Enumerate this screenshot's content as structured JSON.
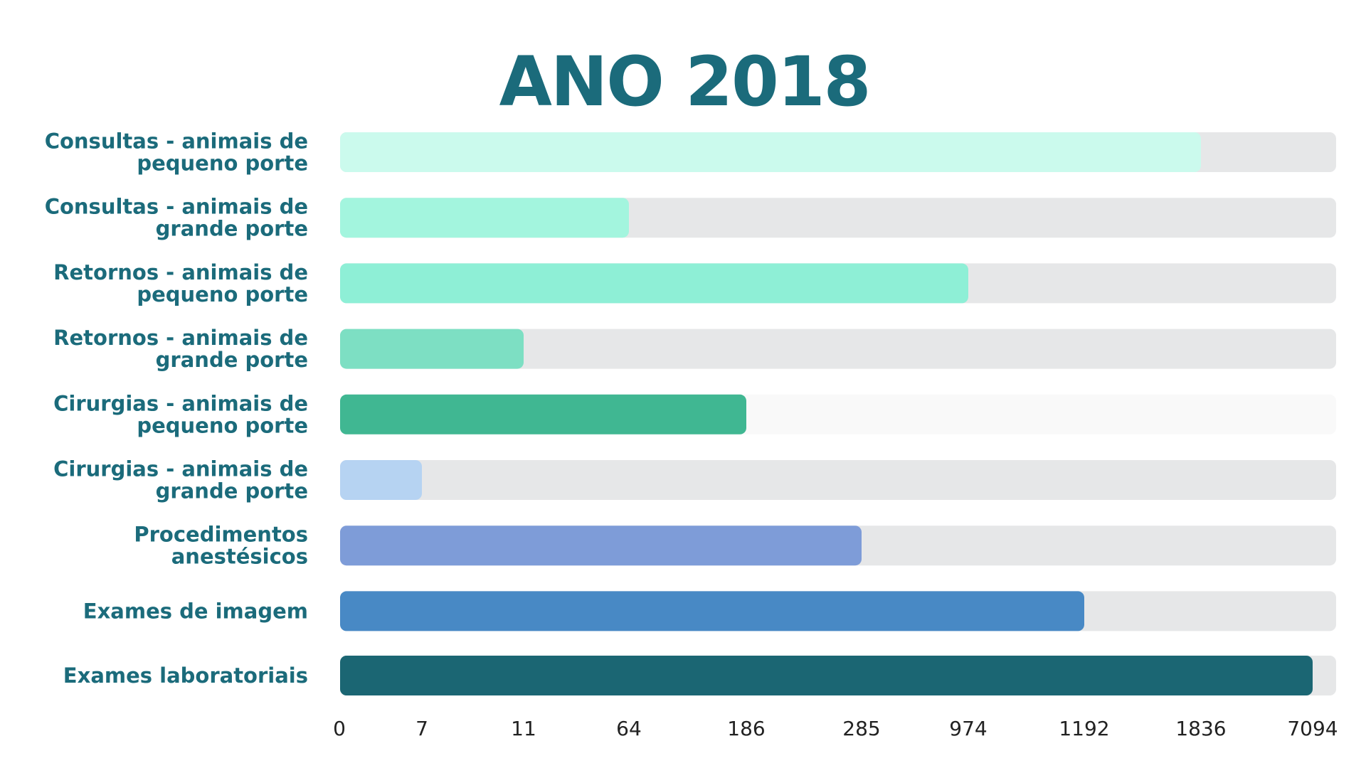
{
  "chart_data": {
    "type": "bar",
    "orientation": "horizontal",
    "title": "ANO 2018",
    "categories": [
      [
        "Consultas - animais de",
        "pequeno porte"
      ],
      [
        "Consultas - animais de",
        "grande porte"
      ],
      [
        "Retornos - animais de",
        "pequeno porte"
      ],
      [
        "Retornos - animais de",
        "grande porte"
      ],
      [
        "Cirurgias - animais de",
        "pequeno porte"
      ],
      [
        "Cirurgias - animais de",
        "grande porte"
      ],
      [
        "Procedimentos",
        "anestésicos"
      ],
      [
        "Exames de imagem"
      ],
      [
        "Exames laboratoriais"
      ]
    ],
    "values": [
      1836,
      64,
      974,
      11,
      186,
      7,
      285,
      1192,
      7094
    ],
    "bar_colors": [
      "#cbfaed",
      "#a3f5de",
      "#8eefd6",
      "#7ddfc3",
      "#40b792",
      "#b6d3f2",
      "#7e9cd8",
      "#4889c5",
      "#1b6673"
    ],
    "track_colors": [
      "#e6e7e8",
      "#e6e7e8",
      "#e6e7e8",
      "#e6e7e8",
      "#f9f9f9",
      "#e6e7e8",
      "#e6e7e8",
      "#e6e7e8",
      "#e6e7e8"
    ],
    "x_ticks": [
      "0",
      "7",
      "11",
      "64",
      "186",
      "285",
      "974",
      "1192",
      "1836",
      "7094"
    ],
    "x_scale": "ordinal-ticks",
    "xlabel": "",
    "ylabel": "",
    "grid": false,
    "legend": "none",
    "colors": {
      "title": "#1b6b7b",
      "labels": "#1b6b7b",
      "ticks": "#222222"
    }
  }
}
